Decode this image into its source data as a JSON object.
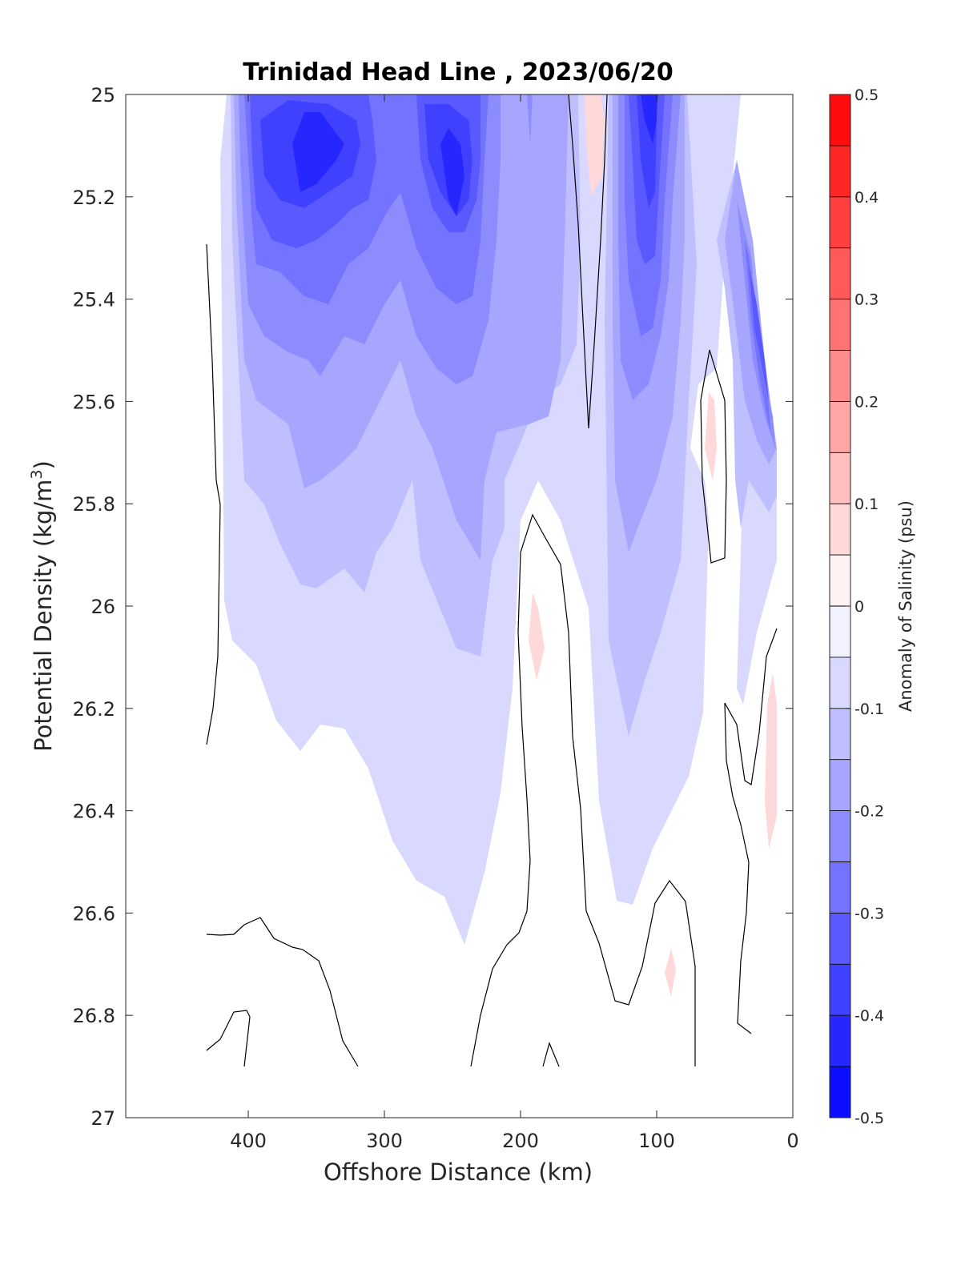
{
  "chart_data": {
    "type": "contour",
    "title": "Trinidad Head Line , 2023/06/20",
    "xlabel": "Offshore Distance (km)",
    "ylabel_main": "Potential Density (kg/m",
    "ylabel_sup": "3",
    "ylabel_end": ")",
    "x_reversed": true,
    "xlim": [
      490,
      0
    ],
    "ylim": [
      25,
      27
    ],
    "y_reversed": true,
    "xticks": [
      400,
      300,
      200,
      100,
      0
    ],
    "yticks": [
      25,
      25.2,
      25.4,
      25.6,
      25.8,
      26,
      26.2,
      26.4,
      26.6,
      26.8,
      27
    ],
    "colorbar": {
      "label": "Anomaly of Salinity (psu)",
      "range": [
        -0.5,
        0.5
      ],
      "step": 0.05,
      "ticks": [
        0.5,
        0.4,
        0.3,
        0.2,
        0.1,
        0,
        -0.1,
        -0.2,
        -0.3,
        -0.4,
        -0.5
      ],
      "low_color": "#0000ff",
      "mid_color": "#ffffff",
      "high_color": "#ff0000"
    },
    "contour_levels": [
      -0.45,
      -0.4,
      -0.35,
      -0.3,
      -0.25,
      -0.2,
      -0.15,
      -0.1,
      -0.05,
      0.05
    ],
    "features": [
      {
        "kind": "fresh core",
        "x": 355,
        "y": 25.12,
        "anomaly": -0.4
      },
      {
        "kind": "fresh core",
        "x": 250,
        "y": 25.15,
        "anomaly": -0.4
      },
      {
        "kind": "fresh core",
        "x": 105,
        "y": 25.05,
        "anomaly": -0.45
      },
      {
        "kind": "fresh nearshore",
        "x": 30,
        "y": 25.4,
        "anomaly": -0.4
      },
      {
        "kind": "salty patch",
        "x": 145,
        "y": 25.1,
        "anomaly": 0.05
      },
      {
        "kind": "salty patch",
        "x": 60,
        "y": 25.7,
        "anomaly": 0.05
      },
      {
        "kind": "salty patch",
        "x": 190,
        "y": 26.08,
        "anomaly": 0.05
      },
      {
        "kind": "salty patch",
        "x": 15,
        "y": 26.33,
        "anomaly": 0.05
      },
      {
        "kind": "salty patch",
        "x": 88,
        "y": 26.7,
        "anomaly": 0.05
      }
    ]
  }
}
